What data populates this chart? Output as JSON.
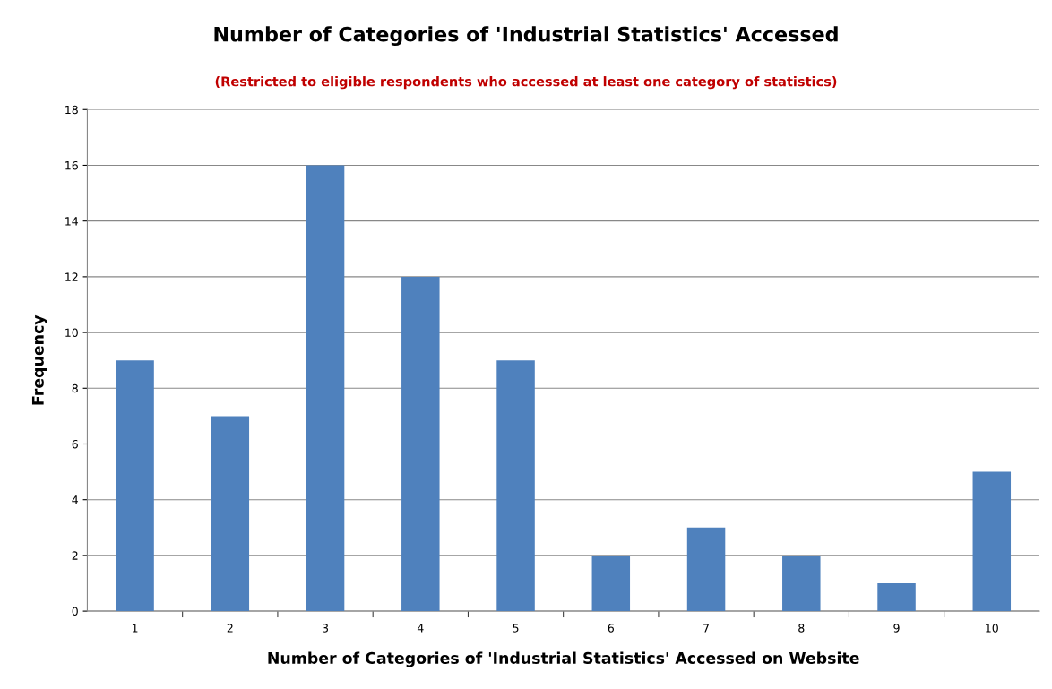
{
  "chart_data": {
    "type": "bar",
    "title": "Number of Categories of 'Industrial Statistics' Accessed",
    "subtitle": "(Restricted to eligible respondents who accessed at least one category of statistics)",
    "xlabel": "Number of Categories of 'Industrial Statistics' Accessed on Website",
    "ylabel": "Frequency",
    "categories": [
      "1",
      "2",
      "3",
      "4",
      "5",
      "6",
      "7",
      "8",
      "9",
      "10"
    ],
    "values": [
      9,
      7,
      16,
      12,
      9,
      2,
      3,
      2,
      1,
      5
    ],
    "color": "#4f81bd",
    "ylim": [
      0,
      18
    ],
    "yticks": [
      0,
      2,
      4,
      6,
      8,
      10,
      12,
      14,
      16,
      18
    ],
    "grid": "y",
    "legend": false
  }
}
